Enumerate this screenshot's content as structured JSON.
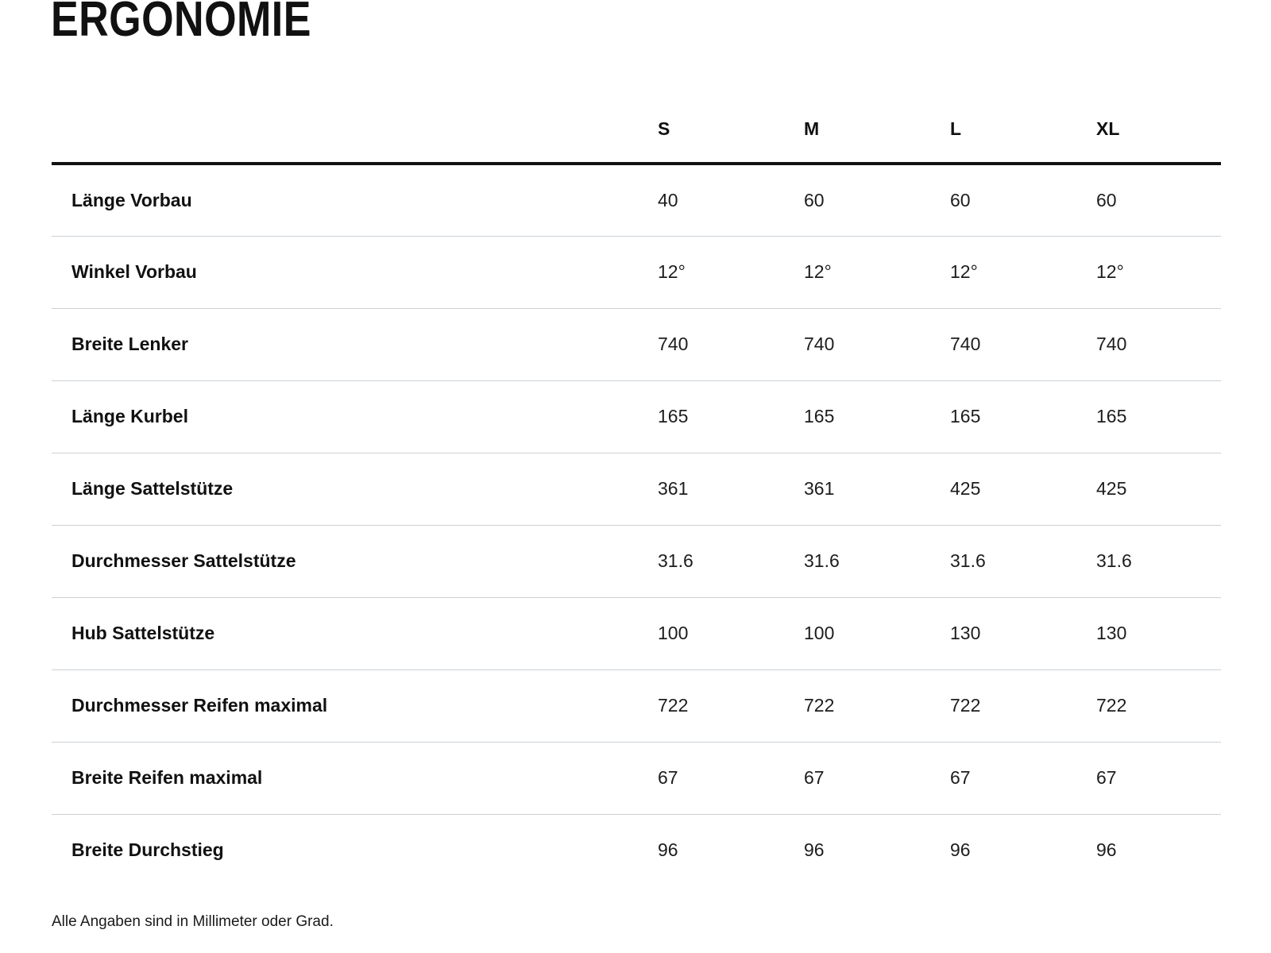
{
  "page": {
    "title": "ERGONOMIE",
    "footnote": "Alle Angaben sind in Millimeter oder Grad."
  },
  "table": {
    "size_columns": [
      "S",
      "M",
      "L",
      "XL"
    ],
    "rows": [
      {
        "label": "Länge Vorbau",
        "values": [
          "40",
          "60",
          "60",
          "60"
        ]
      },
      {
        "label": "Winkel Vorbau",
        "values": [
          "12°",
          "12°",
          "12°",
          "12°"
        ]
      },
      {
        "label": "Breite Lenker",
        "values": [
          "740",
          "740",
          "740",
          "740"
        ]
      },
      {
        "label": "Länge Kurbel",
        "values": [
          "165",
          "165",
          "165",
          "165"
        ]
      },
      {
        "label": "Länge Sattelstütze",
        "values": [
          "361",
          "361",
          "425",
          "425"
        ]
      },
      {
        "label": "Durchmesser Sattelstütze",
        "values": [
          "31.6",
          "31.6",
          "31.6",
          "31.6"
        ]
      },
      {
        "label": "Hub Sattelstütze",
        "values": [
          "100",
          "100",
          "130",
          "130"
        ]
      },
      {
        "label": "Durchmesser Reifen maximal",
        "values": [
          "722",
          "722",
          "722",
          "722"
        ]
      },
      {
        "label": "Breite Reifen maximal",
        "values": [
          "67",
          "67",
          "67",
          "67"
        ]
      },
      {
        "label": "Breite Durchstieg",
        "values": [
          "96",
          "96",
          "96",
          "96"
        ]
      }
    ]
  },
  "colors": {
    "background": "#ffffff",
    "text": "#111111",
    "header_rule": "#111111",
    "row_separator": "#ccd1d5"
  }
}
